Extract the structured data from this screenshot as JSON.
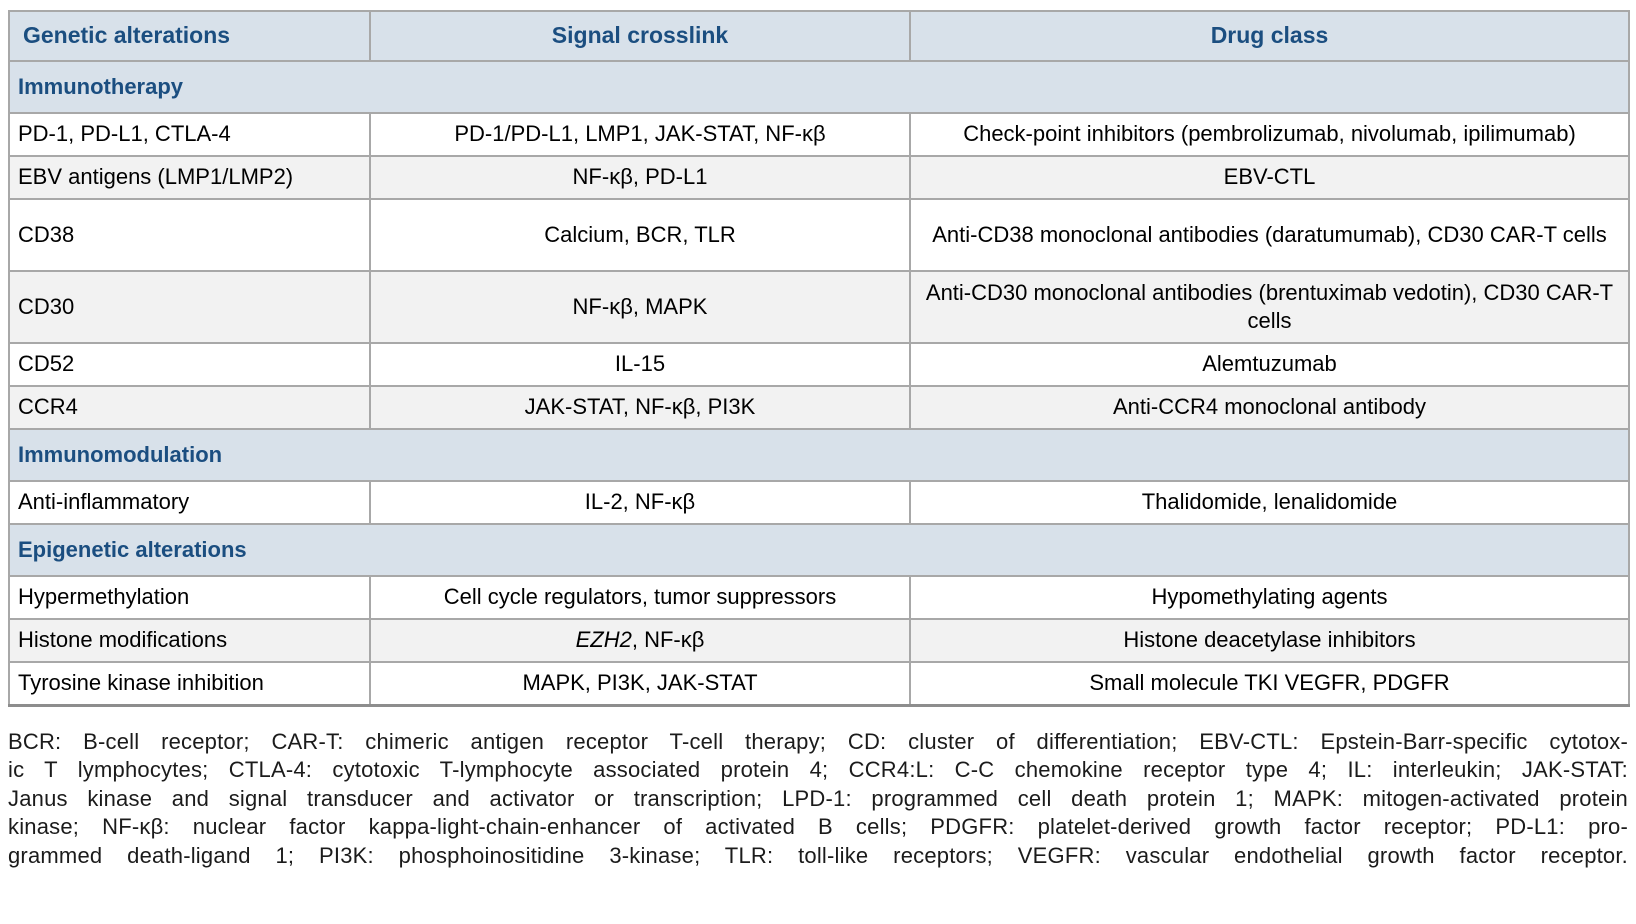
{
  "colors": {
    "header_background": "#d8e1ea",
    "section_background": "#d8e1ea",
    "heading_text": "#1b4e80",
    "row_stripe": "#f2f2f2",
    "row_white": "#ffffff",
    "border": "#a8a8a8",
    "body_text": "#000000"
  },
  "table": {
    "columns": [
      {
        "label": "Genetic alterations",
        "align": "left"
      },
      {
        "label": "Signal crosslink",
        "align": "center"
      },
      {
        "label": "Drug class",
        "align": "center"
      }
    ],
    "sections": [
      {
        "title": "Immunotherapy",
        "rows": [
          {
            "alteration": "PD-1, PD-L1, CTLA-4",
            "signal": "PD-1/PD-L1, LMP1, JAK-STAT, NF-κβ",
            "drug": "Check-point inhibitors (pembrolizumab, nivolumab, ipilimumab)",
            "drug_two_line": false
          },
          {
            "alteration": "EBV antigens (LMP1/LMP2)",
            "signal": "NF-κβ, PD-L1",
            "drug": "EBV-CTL",
            "drug_two_line": false
          },
          {
            "alteration": "CD38",
            "signal": "Calcium, BCR, TLR",
            "drug": "Anti-CD38 monoclonal antibodies (daratumumab), CD30 CAR-T cells",
            "drug_two_line": true
          },
          {
            "alteration": "CD30",
            "signal": "NF-κβ, MAPK",
            "drug": "Anti-CD30 monoclonal antibodies (brentuximab vedotin), CD30 CAR-T cells",
            "drug_two_line": true
          },
          {
            "alteration": "CD52",
            "signal": "IL-15",
            "drug": "Alemtuzumab",
            "drug_two_line": false
          },
          {
            "alteration": "CCR4",
            "signal": "JAK-STAT, NF-κβ, PI3K",
            "drug": "Anti-CCR4 monoclonal antibody",
            "drug_two_line": false
          }
        ]
      },
      {
        "title": "Immunomodulation",
        "rows": [
          {
            "alteration": "Anti-inflammatory",
            "signal": "IL-2, NF-κβ",
            "drug": "Thalidomide, lenalidomide",
            "drug_two_line": false
          }
        ]
      },
      {
        "title": "Epigenetic alterations",
        "rows": [
          {
            "alteration": "Hypermethylation",
            "signal": "Cell cycle regulators, tumor suppressors",
            "drug": "Hypomethylating agents",
            "drug_two_line": false
          },
          {
            "alteration": "Histone modifications",
            "signal_italic": "EZH2",
            "signal": ", NF-κβ",
            "drug": "Histone deacetylase inhibitors",
            "drug_two_line": false
          },
          {
            "alteration": "Tyrosine kinase inhibition",
            "signal": "MAPK, PI3K, JAK-STAT",
            "drug": "Small molecule TKI VEGFR, PDGFR",
            "drug_two_line": false
          }
        ]
      }
    ]
  },
  "footnote": {
    "lines": [
      "BCR: B-cell receptor; CAR-T: chimeric antigen receptor T-cell therapy; CD: cluster of differentiation; EBV-CTL: Epstein-Barr-specific cytotox-",
      "ic T lymphocytes; CTLA-4: cytotoxic T-lymphocyte associated protein 4; CCR4:L: C-C chemokine receptor type 4; IL: interleukin; JAK-STAT:",
      "Janus kinase and signal transducer and activator or transcription; LPD-1: programmed cell death protein 1; MAPK: mitogen-activated protein",
      "kinase; NF-κβ: nuclear factor kappa-light-chain-enhancer of activated B cells; PDGFR: platelet-derived growth factor receptor; PD-L1: pro-",
      "grammed death-ligand 1; PI3K: phosphoinositidine 3-kinase; TLR: toll-like receptors; VEGFR: vascular endothelial growth factor receptor."
    ]
  }
}
